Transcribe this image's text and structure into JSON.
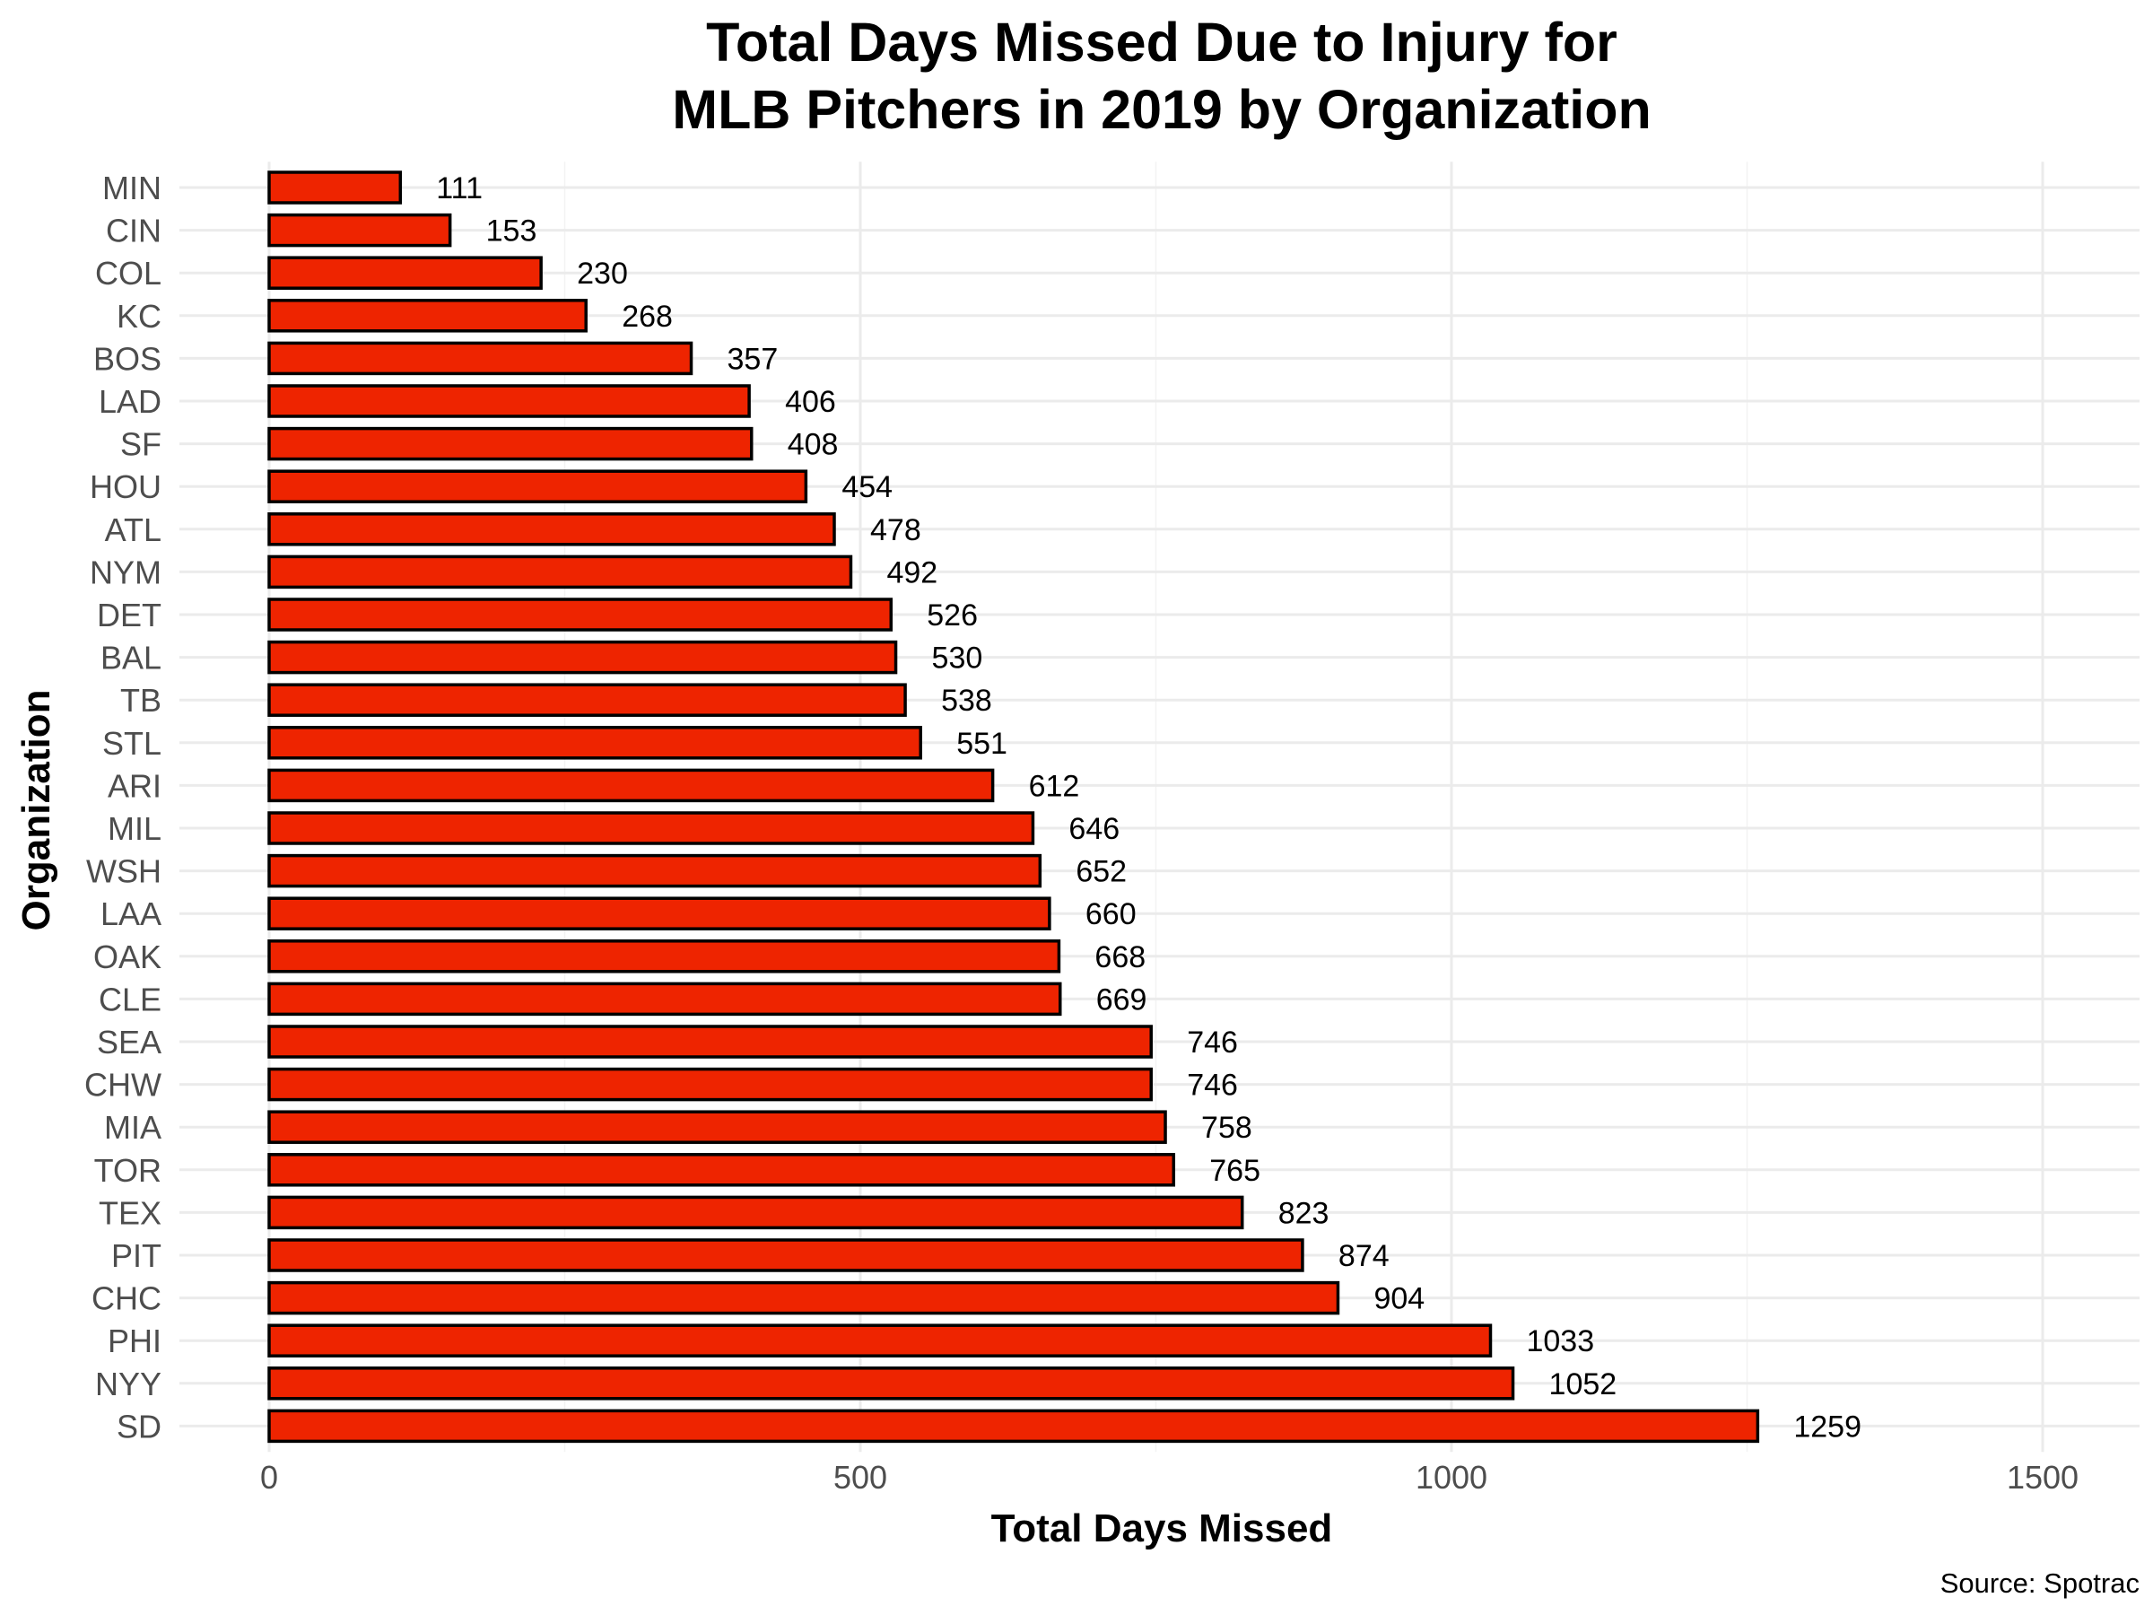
{
  "chart_data": {
    "type": "bar",
    "orientation": "horizontal",
    "title_line1": "Total Days Missed Due to Injury for",
    "title_line2": "MLB Pitchers in 2019 by Organization",
    "xlabel": "Total Days Missed",
    "ylabel": "Organization",
    "caption": "Source: Spotrac",
    "xlim": [
      -150,
      1570
    ],
    "x_ticks": [
      0,
      500,
      1000,
      1500
    ],
    "x_minor_ticks": [
      250,
      750,
      1250
    ],
    "grid": true,
    "legend": "none",
    "bar_color": "#ee2400",
    "bar_edge_color": "#000000",
    "categories": [
      "MIN",
      "CIN",
      "COL",
      "KC",
      "BOS",
      "LAD",
      "SF",
      "HOU",
      "ATL",
      "NYM",
      "DET",
      "BAL",
      "TB",
      "STL",
      "ARI",
      "MIL",
      "WSH",
      "LAA",
      "OAK",
      "CLE",
      "SEA",
      "CHW",
      "MIA",
      "TOR",
      "TEX",
      "PIT",
      "CHC",
      "PHI",
      "NYY",
      "SD"
    ],
    "values": [
      111,
      153,
      230,
      268,
      357,
      406,
      408,
      454,
      478,
      492,
      526,
      530,
      538,
      551,
      612,
      646,
      652,
      660,
      668,
      669,
      746,
      746,
      758,
      765,
      823,
      874,
      904,
      1033,
      1052,
      1259
    ]
  }
}
